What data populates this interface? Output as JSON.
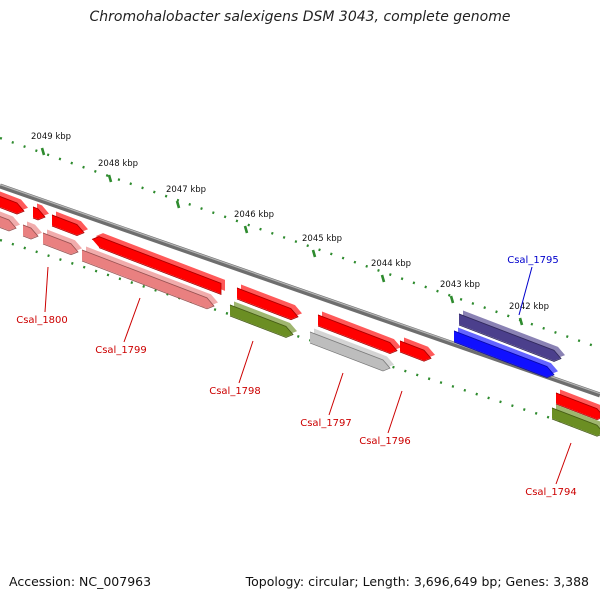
{
  "title": "Chromohalobacter salexigens DSM 3043, complete genome",
  "accession": "Accession: NC_007963",
  "topology": "Topology: circular; Length: 3,696,649 bp; Genes: 3,388",
  "colors": {
    "backbone": "#777777",
    "tick": "#2e8b2e",
    "red": "#ff0000",
    "pink": "#e98080",
    "olive": "#6b8e23",
    "gray": "#bdbdbd",
    "navy": "#4b3f8c",
    "blue": "#1010ff",
    "label_red": "#cc0000",
    "label_blue": "#0000cc"
  },
  "kbp_ticks": [
    "2049 kbp",
    "2048 kbp",
    "2047 kbp",
    "2046 kbp",
    "2045 kbp",
    "2044 kbp",
    "2043 kbp",
    "2042 kbp"
  ],
  "gene_labels": [
    {
      "id": "Csal_1800",
      "color": "red"
    },
    {
      "id": "Csal_1799",
      "color": "red"
    },
    {
      "id": "Csal_1798",
      "color": "red"
    },
    {
      "id": "Csal_1797",
      "color": "red"
    },
    {
      "id": "Csal_1796",
      "color": "red"
    },
    {
      "id": "Csal_1795",
      "color": "blue"
    },
    {
      "id": "Csal_1794",
      "color": "red"
    }
  ]
}
